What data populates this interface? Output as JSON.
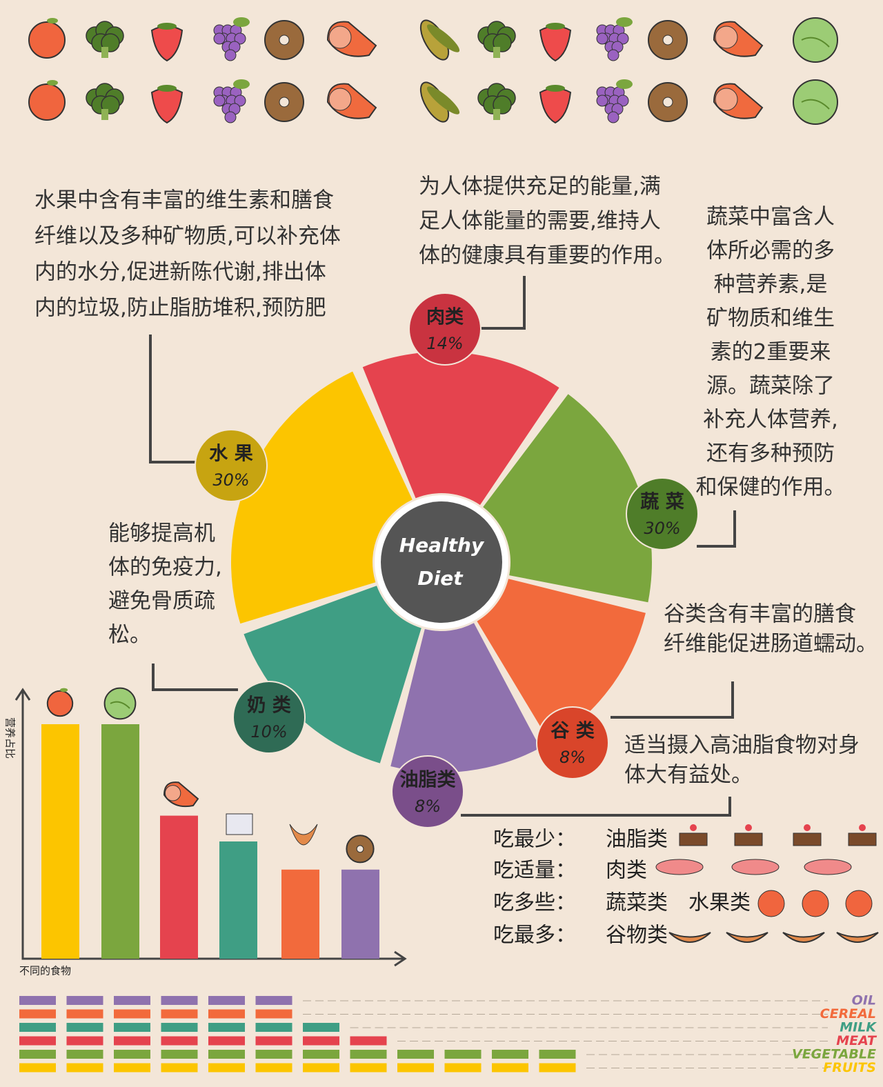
{
  "wheel": {
    "center": [
      "Healthy",
      "Diet"
    ],
    "segments": [
      {
        "name": "肉类",
        "label": "14%"
      },
      {
        "name": "蔬 菜",
        "label": "30%"
      },
      {
        "name": "谷 类",
        "label": "8%"
      },
      {
        "name": "油脂类",
        "label": "8%"
      },
      {
        "name": "奶 类",
        "label": "10%"
      },
      {
        "name": "水 果",
        "label": "30%"
      }
    ]
  },
  "notes": {
    "fruit": [
      "水果中含有丰富的维生素和膳食",
      "纤维以及多种矿物质,可以补充体",
      "内的水分,促进新陈代谢,排出体",
      "内的垃圾,防止脂肪堆积,预防肥"
    ],
    "meat": [
      "为人体提供充足的能量,满",
      "足人体能量的需要,维持人",
      "体的健康具有重要的作用。"
    ],
    "vegetable": [
      "蔬菜中富含人",
      "体所必需的多",
      "种营养素,是",
      "矿物质和维生",
      "素的2重要来",
      "源。蔬菜除了",
      "补充人体营养,",
      "还有多种预防",
      "和保健的作用。"
    ],
    "milk": [
      "能够提高机",
      "体的免疫力,",
      "避免骨质疏",
      "松。"
    ],
    "cereal": [
      "谷类含有丰富的膳食",
      "纤维能促进肠道蠕动。"
    ],
    "oil": [
      "适当摄入高油脂食物对身",
      "体大有益处。"
    ]
  },
  "guide": [
    {
      "label": "吃最少：",
      "items": [
        "油脂类"
      ]
    },
    {
      "label": "吃适量：",
      "items": [
        "肉类"
      ]
    },
    {
      "label": "吃多些：",
      "items": [
        "蔬菜类",
        "水果类"
      ]
    },
    {
      "label": "吃最多：",
      "items": [
        "谷物类"
      ]
    }
  ],
  "bar_chart": {
    "y_label": "营养占比",
    "x_label": "不同的食物",
    "ylim": [
      0,
      100
    ],
    "values": [
      100,
      100,
      61,
      50,
      38,
      38
    ]
  },
  "stripes": {
    "labels": [
      "OIL",
      "CEREAL",
      "MILK",
      "MEAT",
      "VEGETABLE",
      "FRUITS"
    ],
    "counts": [
      6,
      6,
      7,
      8,
      12,
      12
    ]
  }
}
